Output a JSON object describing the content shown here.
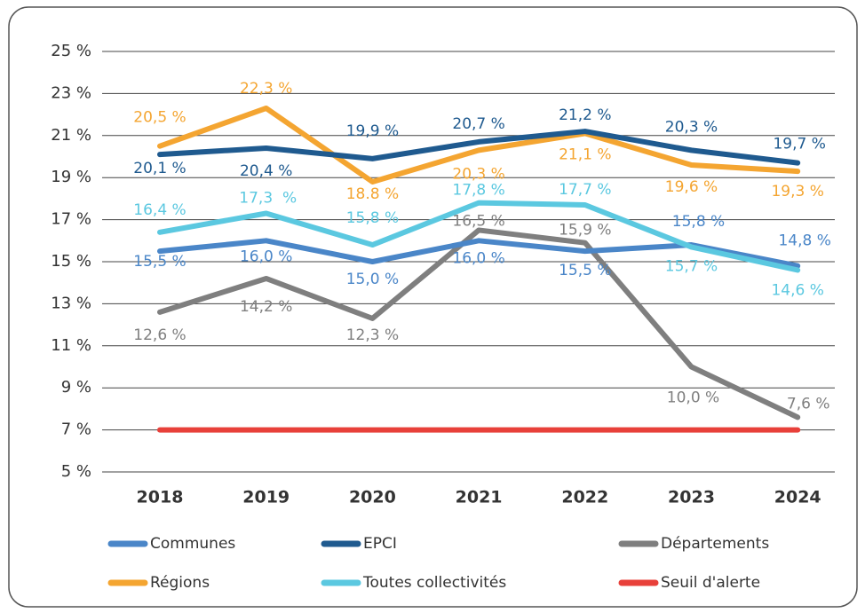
{
  "chart_data": {
    "type": "line",
    "categories": [
      "2018",
      "2019",
      "2020",
      "2021",
      "2022",
      "2023",
      "2024"
    ],
    "series": [
      {
        "name": "Communes",
        "color": "#4a86c8",
        "values": [
          15.5,
          16.0,
          15.0,
          16.0,
          15.5,
          15.8,
          14.8
        ],
        "value_labels": [
          "15,5 %",
          "16,0 %",
          "15,0 %",
          "16,0 %",
          "15,5 %",
          "15,8 %",
          "14,8 %"
        ]
      },
      {
        "name": "EPCI",
        "color": "#1f5a8f",
        "values": [
          20.1,
          20.4,
          19.9,
          20.7,
          21.2,
          20.3,
          19.7
        ],
        "value_labels": [
          "20,1 %",
          "20,4 %",
          "19,9 %",
          "20,7 %",
          "21,2 %",
          "20,3 %",
          "19,7 %"
        ]
      },
      {
        "name": "Départements",
        "color": "#7f7f7f",
        "values": [
          12.6,
          14.2,
          12.3,
          16.5,
          15.9,
          10.0,
          7.6
        ],
        "value_labels": [
          "12,6 %",
          "14,2 %",
          "12,3 %",
          "16,5 %",
          "15,9 %",
          "10,0 %",
          "7,6 %"
        ]
      },
      {
        "name": "Régions",
        "color": "#f4a531",
        "values": [
          20.5,
          22.3,
          18.8,
          20.3,
          21.1,
          19.6,
          19.3
        ],
        "value_labels": [
          "20,5 %",
          "22,3 %",
          "18.8 %",
          "20,3 %",
          "21,1 %",
          "19,6 %",
          "19,3 %"
        ]
      },
      {
        "name": "Toutes collectivités",
        "color": "#5bc8e0",
        "values": [
          16.4,
          17.3,
          15.8,
          17.8,
          17.7,
          15.7,
          14.6
        ],
        "value_labels": [
          "16,4 %",
          "17,3  %",
          "15,8 %",
          "17,8 %",
          "17,7 %",
          "15,7 %",
          "14,6 %"
        ]
      },
      {
        "name": "Seuil d'alerte",
        "color": "#e8403a",
        "values": [
          7,
          7,
          7,
          7,
          7,
          7,
          7
        ]
      }
    ],
    "ylim": [
      5,
      25
    ],
    "yticks": [
      {
        "value": 5,
        "label": "5 %"
      },
      {
        "value": 7,
        "label": "7 %"
      },
      {
        "value": 9,
        "label": "9 %"
      },
      {
        "value": 11,
        "label": "11 %"
      },
      {
        "value": 13,
        "label": "13 %"
      },
      {
        "value": 15,
        "label": "15 %"
      },
      {
        "value": 17,
        "label": "17 %"
      },
      {
        "value": 19,
        "label": "19 %"
      },
      {
        "value": 21,
        "label": "21 %"
      },
      {
        "value": 23,
        "label": "23 %"
      },
      {
        "value": 25,
        "label": "25 %"
      }
    ],
    "grid": true,
    "legend": "bottom"
  }
}
